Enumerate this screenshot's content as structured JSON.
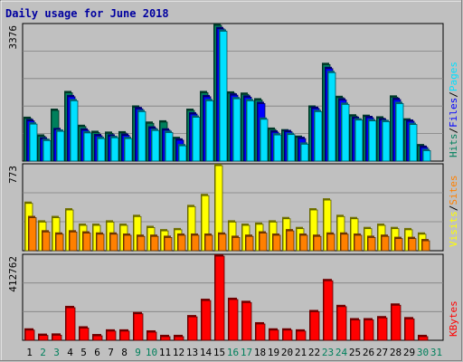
{
  "chart_data": {
    "type": "bar",
    "title": "Daily usage for June 2018",
    "categories": [
      "1",
      "2",
      "3",
      "4",
      "5",
      "6",
      "7",
      "8",
      "9",
      "10",
      "11",
      "12",
      "13",
      "14",
      "15",
      "16",
      "17",
      "18",
      "19",
      "20",
      "21",
      "22",
      "23",
      "24",
      "25",
      "26",
      "27",
      "28",
      "29",
      "30",
      "31"
    ],
    "weekend_days": [
      "2",
      "3",
      "9",
      "10",
      "16",
      "17",
      "23",
      "24",
      "30",
      "31"
    ],
    "colors": {
      "hits": "#00805c",
      "files": "#0000ff",
      "pages": "#00e0ff",
      "visits": "#ffff00",
      "sites": "#ff8000",
      "kbytes": "#ff0000",
      "weekday_label": "#000000",
      "weekend_label": "#00805c",
      "title": "#0000a0",
      "frame_bg": "#c0c0c0",
      "plot_bg": "#c0c0c0"
    },
    "panels": [
      {
        "id": "top",
        "max_label": "3376",
        "ymax": 3376,
        "legend": [
          {
            "text": "Hits",
            "color": "#00805c"
          },
          {
            "text": "/",
            "color": "#000000"
          },
          {
            "text": "Files",
            "color": "#0000ff"
          },
          {
            "text": "/",
            "color": "#000000"
          },
          {
            "text": "Pages",
            "color": "#00e0ff"
          }
        ],
        "series": [
          {
            "name": "Hits",
            "color": "#00805c",
            "values": [
              1060,
              620,
              1260,
              1700,
              860,
              710,
              690,
              700,
              1340,
              940,
              970,
              560,
              1260,
              1700,
              3376,
              1690,
              1660,
              1520,
              790,
              750,
              590,
              1340,
              2400,
              1580,
              1120,
              1110,
              1070,
              1590,
              1020,
              380,
              0
            ]
          },
          {
            "name": "Files",
            "color": "#0000ff",
            "values": [
              1000,
              550,
              780,
              1600,
              770,
              630,
              620,
              640,
              1300,
              820,
              770,
              520,
              1170,
              1600,
              3290,
              1640,
              1590,
              1430,
              720,
              730,
              560,
              1310,
              2300,
              1520,
              1060,
              1080,
              1020,
              1530,
              990,
              340,
              0
            ]
          },
          {
            "name": "Pages",
            "color": "#00e0ff",
            "values": [
              920,
              510,
              740,
              1500,
              700,
              560,
              580,
              560,
              1230,
              760,
              710,
              380,
              1090,
              1500,
              3230,
              1550,
              1500,
              1040,
              650,
              660,
              420,
              1230,
              2200,
              1410,
              1020,
              1000,
              980,
              1430,
              910,
              260,
              0
            ]
          }
        ]
      },
      {
        "id": "middle",
        "max_label": "773",
        "ymax": 773,
        "legend": [
          {
            "text": "Visits",
            "color": "#ffff00"
          },
          {
            "text": "/",
            "color": "#000000"
          },
          {
            "text": "Sites",
            "color": "#ff8000"
          }
        ],
        "series": [
          {
            "name": "Visits",
            "color": "#ffff00",
            "values": [
              430,
              260,
              300,
              370,
              230,
              230,
              260,
              230,
              310,
              210,
              180,
              190,
              400,
              500,
              773,
              260,
              230,
              240,
              260,
              290,
              200,
              370,
              460,
              310,
              290,
              200,
              230,
              200,
              190,
              150,
              0
            ]
          },
          {
            "name": "Sites",
            "color": "#ff8000",
            "values": [
              300,
              170,
              150,
              170,
              160,
              150,
              150,
              140,
              130,
              130,
              120,
              140,
              140,
              140,
              150,
              120,
              130,
              160,
              140,
              180,
              140,
              130,
              150,
              150,
              140,
              120,
              130,
              110,
              110,
              90,
              0
            ]
          }
        ]
      },
      {
        "id": "bottom",
        "max_label": "412762",
        "ymax": 412762,
        "legend": [
          {
            "text": "KBytes",
            "color": "#ff0000"
          }
        ],
        "series": [
          {
            "name": "KBytes",
            "color": "#ff0000",
            "values": [
              50000,
              24000,
              25000,
              160000,
              60000,
              22000,
              45000,
              45000,
              130000,
              40000,
              18000,
              18000,
              115000,
              195000,
              412762,
              200000,
              185000,
              80000,
              50000,
              50000,
              45000,
              140000,
              292000,
              165000,
              100000,
              100000,
              110000,
              172000,
              105000,
              18000,
              0
            ]
          }
        ]
      }
    ]
  }
}
